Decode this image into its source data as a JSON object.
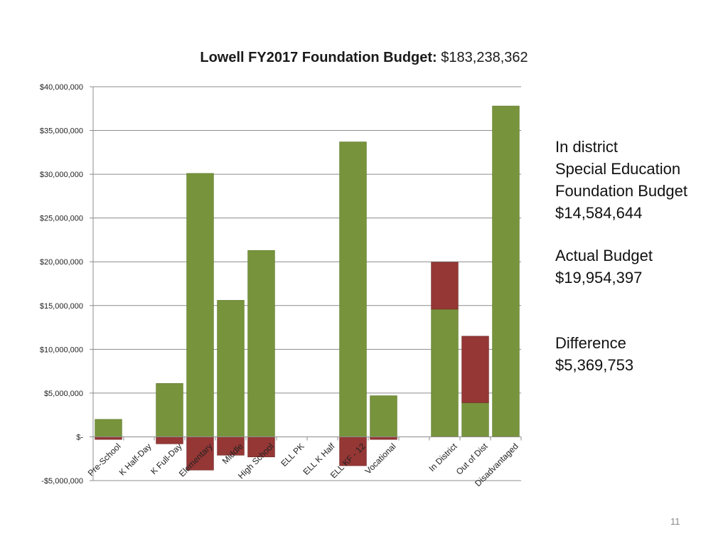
{
  "chart_data": {
    "type": "bar",
    "title_bold": "Lowell FY2017 Foundation Budget:",
    "title_value": "$183,238,362",
    "categories": [
      "Pre-School",
      "K Half-Day",
      "K Full-Day",
      "Elementary",
      "Middle",
      "High School",
      "ELL PK",
      "ELL K Half",
      "ELL KF - 12",
      "Vocational",
      "",
      "In District",
      "Out of Dist",
      "Disadvantaged"
    ],
    "series": [
      {
        "role": "foundation",
        "color": "#77933c",
        "values": [
          2000000,
          0,
          6100000,
          30100000,
          15600000,
          21300000,
          0,
          0,
          33700000,
          4700000,
          0,
          14584644,
          3900000,
          37800000
        ]
      },
      {
        "role": "actual-above-foundation",
        "color": "#953735",
        "values": [
          0,
          0,
          0,
          0,
          0,
          0,
          0,
          0,
          0,
          0,
          0,
          5369753,
          7600000,
          0
        ]
      },
      {
        "role": "negative",
        "color": "#953735",
        "values": [
          -300000,
          0,
          -800000,
          -3800000,
          -2100000,
          -2300000,
          0,
          0,
          -3300000,
          -300000,
          0,
          0,
          0,
          0
        ]
      }
    ],
    "ylim": [
      -5000000,
      40000000
    ],
    "yticks": [
      {
        "value": 40000000,
        "label": "$40,000,000"
      },
      {
        "value": 35000000,
        "label": "$35,000,000"
      },
      {
        "value": 30000000,
        "label": "$30,000,000"
      },
      {
        "value": 25000000,
        "label": "$25,000,000"
      },
      {
        "value": 20000000,
        "label": "$20,000,000"
      },
      {
        "value": 15000000,
        "label": "$15,000,000"
      },
      {
        "value": 10000000,
        "label": "$10,000,000"
      },
      {
        "value": 5000000,
        "label": "$5,000,000"
      },
      {
        "value": 0,
        "label": "$-"
      },
      {
        "value": -5000000,
        "label": "-$5,000,000"
      }
    ],
    "grid": true
  },
  "annotations": {
    "in_district": [
      "In district",
      "Special Education",
      "Foundation Budget",
      "$14,584,644"
    ],
    "actual": [
      "Actual Budget",
      "$19,954,397"
    ],
    "difference": [
      "Difference",
      "$5,369,753"
    ]
  },
  "page_number": "11"
}
